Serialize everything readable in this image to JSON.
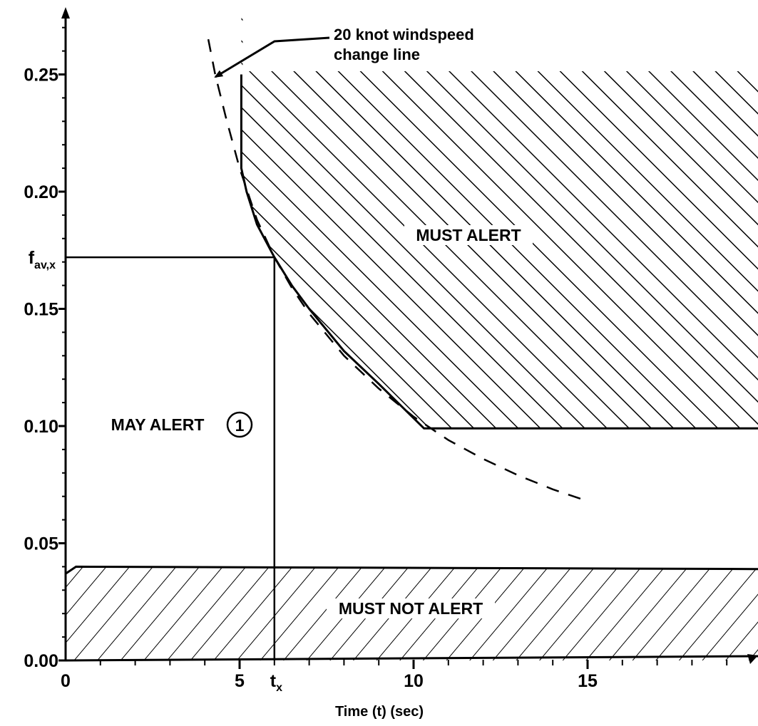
{
  "chart_data": {
    "type": "area",
    "xlabel": "Time (t)   (sec)",
    "ylabel": "",
    "xlim": [
      0,
      20
    ],
    "ylim": [
      0,
      0.275
    ],
    "x_ticks": [
      {
        "value": 0,
        "label": "0"
      },
      {
        "value": 5,
        "label": "5"
      },
      {
        "value": 10,
        "label": "10"
      },
      {
        "value": 15,
        "label": "15"
      }
    ],
    "x_marker": {
      "value": 6,
      "label_main": "t",
      "label_sub": "x"
    },
    "y_ticks": [
      {
        "value": 0.0,
        "label": "0.00"
      },
      {
        "value": 0.05,
        "label": "0.05"
      },
      {
        "value": 0.1,
        "label": "0.10"
      },
      {
        "value": 0.15,
        "label": "0.15"
      },
      {
        "value": 0.2,
        "label": "0.20"
      },
      {
        "value": 0.25,
        "label": "0.25"
      }
    ],
    "y_marker": {
      "value": 0.172,
      "label_main": "f",
      "label_sub": "av,x"
    },
    "must_alert_boundary": {
      "x": [
        5.05,
        5.05,
        5.2,
        5.5,
        6.0,
        6.5,
        7.0,
        8.0,
        9.0,
        10.3,
        20
      ],
      "y": [
        0.25,
        0.21,
        0.2,
        0.186,
        0.172,
        0.16,
        0.15,
        0.132,
        0.118,
        0.099,
        0.099
      ]
    },
    "must_not_alert_boundary": {
      "x": [
        0,
        0.3,
        20
      ],
      "y": [
        0.037,
        0.04,
        0.039
      ]
    },
    "windspeed_change_line": {
      "x": [
        4.1,
        4.3,
        4.6,
        5.0,
        5.5,
        6.0,
        6.5,
        7.0,
        8.0,
        9.0,
        10.0,
        11.0,
        12.0,
        13.0,
        14.0,
        15.0
      ],
      "y": [
        0.265,
        0.25,
        0.232,
        0.21,
        0.188,
        0.172,
        0.159,
        0.148,
        0.13,
        0.116,
        0.104,
        0.094,
        0.086,
        0.079,
        0.073,
        0.068
      ]
    },
    "regions": [
      {
        "name": "MUST ALERT",
        "hatch": "backslash"
      },
      {
        "name": "MAY ALERT",
        "note_number": "1"
      },
      {
        "name": "MUST NOT ALERT",
        "hatch": "slash"
      }
    ],
    "annotation": {
      "lines": [
        "20 knot windspeed",
        "change line"
      ]
    },
    "grid": false,
    "legend": "none"
  }
}
